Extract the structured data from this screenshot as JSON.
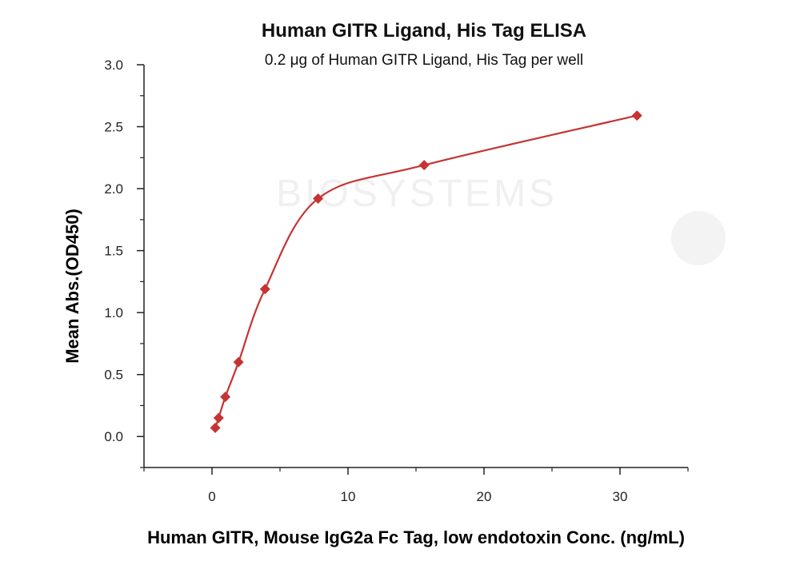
{
  "chart_data": {
    "type": "line",
    "title": "Human GITR Ligand, His Tag ELISA",
    "subtitle": "0.2 μg of Human GITR Ligand, His Tag per well",
    "xlabel": "Human GITR, Mouse IgG2a Fc Tag, low endotoxin Conc. (ng/mL)",
    "ylabel": "Mean Abs.(OD450)",
    "xlim": [
      -5,
      35
    ],
    "ylim": [
      -0.25,
      3.0
    ],
    "x_ticks": [
      0,
      10,
      20,
      30
    ],
    "x_tick_labels": [
      "0",
      "10",
      "20",
      "30"
    ],
    "y_ticks": [
      0.0,
      0.5,
      1.0,
      1.5,
      2.0,
      2.5,
      3.0
    ],
    "y_tick_labels": [
      "0.0",
      "0.5",
      "1.0",
      "1.5",
      "2.0",
      "2.5",
      "3.0"
    ],
    "grid": false,
    "legend": "none",
    "series": [
      {
        "x": [
          0.24,
          0.49,
          0.98,
          1.95,
          3.9,
          7.8,
          15.6,
          31.25
        ],
        "y": [
          0.07,
          0.15,
          0.32,
          0.6,
          1.19,
          1.92,
          2.19,
          2.59
        ],
        "marker": "diamond",
        "color": "#c73333"
      }
    ]
  },
  "watermark": {
    "text": "BIOSYSTEMS"
  }
}
